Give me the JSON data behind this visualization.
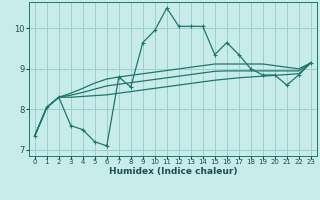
{
  "xlabel": "Humidex (Indice chaleur)",
  "ylabel": "",
  "bg_color": "#c8ecea",
  "grid_color": "#9ecece",
  "line_color": "#1e7868",
  "xlim": [
    -0.5,
    23.5
  ],
  "ylim": [
    6.85,
    10.65
  ],
  "xticks": [
    0,
    1,
    2,
    3,
    4,
    5,
    6,
    7,
    8,
    9,
    10,
    11,
    12,
    13,
    14,
    15,
    16,
    17,
    18,
    19,
    20,
    21,
    22,
    23
  ],
  "yticks": [
    7,
    8,
    9,
    10
  ],
  "series0": [
    7.35,
    8.05,
    8.3,
    7.6,
    7.5,
    7.2,
    7.1,
    8.8,
    8.55,
    9.65,
    9.95,
    10.5,
    10.05,
    10.05,
    10.05,
    9.35,
    9.65,
    9.35,
    9.0,
    8.85,
    8.85,
    8.6,
    8.85,
    9.15
  ],
  "series1": [
    7.35,
    8.05,
    8.3,
    8.3,
    8.32,
    8.34,
    8.36,
    8.4,
    8.44,
    8.48,
    8.52,
    8.56,
    8.6,
    8.64,
    8.68,
    8.72,
    8.75,
    8.78,
    8.8,
    8.82,
    8.84,
    8.86,
    8.88,
    9.15
  ],
  "series2": [
    7.35,
    8.05,
    8.3,
    8.35,
    8.42,
    8.5,
    8.58,
    8.62,
    8.66,
    8.7,
    8.74,
    8.78,
    8.82,
    8.86,
    8.9,
    8.94,
    8.95,
    8.95,
    8.95,
    8.95,
    8.95,
    8.95,
    8.95,
    9.15
  ],
  "series3": [
    7.35,
    8.05,
    8.3,
    8.4,
    8.52,
    8.65,
    8.75,
    8.8,
    8.84,
    8.88,
    8.92,
    8.96,
    9.0,
    9.04,
    9.08,
    9.12,
    9.12,
    9.12,
    9.12,
    9.12,
    9.08,
    9.04,
    9.0,
    9.15
  ],
  "marker_size": 3.5,
  "line_width": 0.9
}
